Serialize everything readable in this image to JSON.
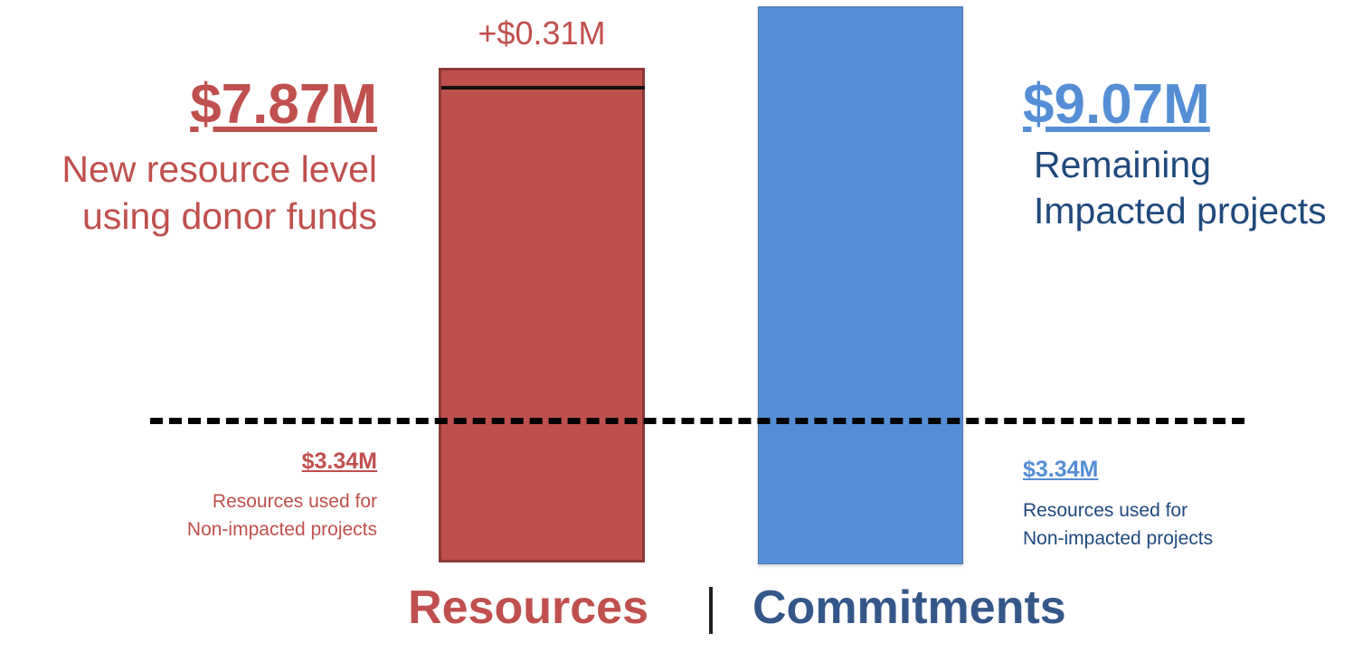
{
  "chart_data": {
    "type": "bar",
    "categories": [
      "Resources",
      "Commitments"
    ],
    "divider": "|",
    "values_musd": [
      7.87,
      9.07
    ],
    "resources": {
      "total": "$7.87M",
      "total_value": 7.87,
      "description_lines": [
        "New resource level",
        "using donor funds"
      ],
      "increase_label": "+$0.31M",
      "increase_value": 0.31,
      "previous_level_value": 7.56,
      "baseline_value": "$3.34M",
      "baseline_lines": [
        "Resources used for",
        "Non-impacted projects"
      ]
    },
    "commitments": {
      "total": "$9.07M",
      "total_value": 9.07,
      "description_lines": [
        "Remaining",
        "Impacted projects"
      ],
      "baseline_value": "$3.34M",
      "baseline_lines": [
        "Resources used for",
        "Non-impacted projects"
      ]
    },
    "threshold_value": 3.34,
    "colors": {
      "resources": "#c0504d",
      "commitments": "#558ed5",
      "commitments_text": "#1f497d"
    }
  }
}
